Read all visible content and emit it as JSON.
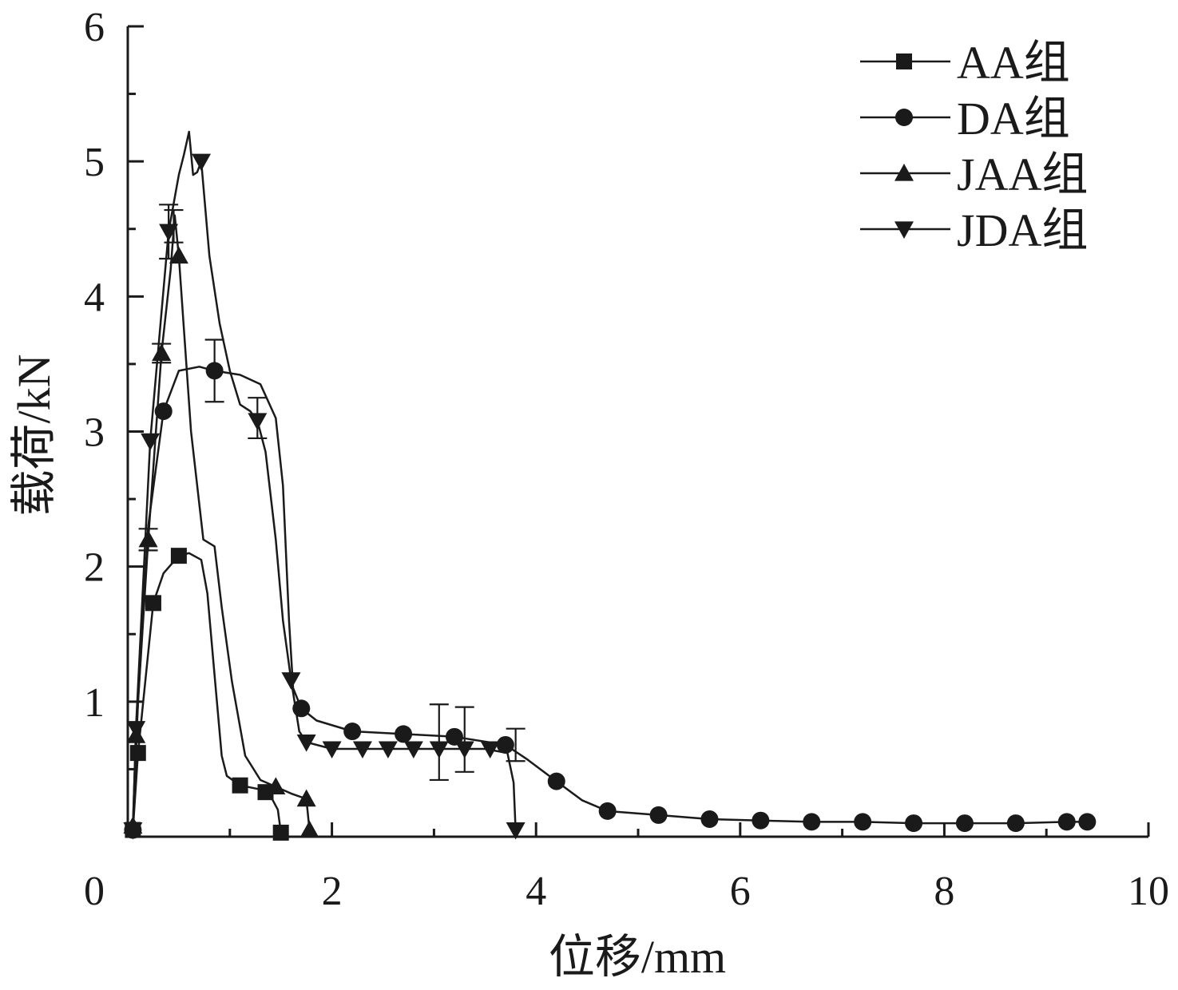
{
  "chart_data": {
    "type": "line",
    "title": "",
    "xlabel": "位移/mm",
    "ylabel": "载荷/kN",
    "xlim": [
      0,
      10
    ],
    "ylim": [
      0,
      6
    ],
    "xticks": [
      0,
      2,
      4,
      6,
      8,
      10
    ],
    "yticks": [
      1,
      2,
      3,
      4,
      5,
      6
    ],
    "xtick_labels": [
      "0",
      "2",
      "4",
      "6",
      "8",
      "10"
    ],
    "ytick_labels": [
      "1",
      "2",
      "3",
      "4",
      "5",
      "6"
    ],
    "legend_position": "top-right",
    "colors": {
      "ink": "#1a1a1a",
      "background": "#ffffff"
    },
    "series": [
      {
        "name": "AA组",
        "marker": "square",
        "x": [
          0.05,
          0.1,
          0.25,
          0.5,
          1.1,
          1.35,
          1.5
        ],
        "y": [
          0.05,
          0.62,
          1.73,
          2.08,
          0.38,
          0.33,
          0.03
        ],
        "curve": [
          [
            0.05,
            0.05
          ],
          [
            0.1,
            0.62
          ],
          [
            0.25,
            1.73
          ],
          [
            0.35,
            1.95
          ],
          [
            0.5,
            2.08
          ],
          [
            0.6,
            2.1
          ],
          [
            0.72,
            2.05
          ],
          [
            0.78,
            1.8
          ],
          [
            0.85,
            1.2
          ],
          [
            0.92,
            0.6
          ],
          [
            0.97,
            0.45
          ],
          [
            1.1,
            0.38
          ],
          [
            1.3,
            0.35
          ],
          [
            1.4,
            0.3
          ],
          [
            1.47,
            0.2
          ],
          [
            1.5,
            0.03
          ]
        ]
      },
      {
        "name": "DA组",
        "marker": "circle",
        "x": [
          0.05,
          0.35,
          0.85,
          1.7,
          2.2,
          2.7,
          3.2,
          3.7,
          4.2,
          4.7,
          5.2,
          5.7,
          6.2,
          6.7,
          7.2,
          7.7,
          8.2,
          8.7,
          9.2,
          9.4
        ],
        "y": [
          0.05,
          3.15,
          3.45,
          0.95,
          0.78,
          0.76,
          0.74,
          0.68,
          0.41,
          0.19,
          0.16,
          0.13,
          0.12,
          0.11,
          0.11,
          0.1,
          0.1,
          0.1,
          0.11,
          0.11
        ],
        "error_bars": [
          {
            "x": 0.85,
            "y": 3.45,
            "err": 0.23
          },
          {
            "x": 3.05,
            "y": 0.7,
            "err": 0.28
          },
          {
            "x": 3.3,
            "y": 0.72,
            "err": 0.24
          },
          {
            "x": 3.8,
            "y": 0.68,
            "err": 0.12
          }
        ],
        "curve": [
          [
            0.05,
            0.05
          ],
          [
            0.1,
            1.0
          ],
          [
            0.2,
            2.3
          ],
          [
            0.35,
            3.15
          ],
          [
            0.5,
            3.45
          ],
          [
            0.7,
            3.48
          ],
          [
            0.85,
            3.45
          ],
          [
            1.1,
            3.42
          ],
          [
            1.3,
            3.35
          ],
          [
            1.45,
            3.1
          ],
          [
            1.52,
            2.6
          ],
          [
            1.58,
            1.6
          ],
          [
            1.62,
            1.1
          ],
          [
            1.7,
            0.95
          ],
          [
            1.85,
            0.86
          ],
          [
            2.2,
            0.78
          ],
          [
            2.7,
            0.76
          ],
          [
            3.2,
            0.74
          ],
          [
            3.7,
            0.68
          ],
          [
            3.9,
            0.58
          ],
          [
            4.2,
            0.41
          ],
          [
            4.45,
            0.27
          ],
          [
            4.7,
            0.19
          ],
          [
            5.2,
            0.16
          ],
          [
            5.7,
            0.13
          ],
          [
            6.2,
            0.12
          ],
          [
            6.7,
            0.11
          ],
          [
            7.2,
            0.11
          ],
          [
            7.7,
            0.1
          ],
          [
            8.2,
            0.1
          ],
          [
            8.7,
            0.1
          ],
          [
            9.2,
            0.11
          ],
          [
            9.4,
            0.11
          ]
        ]
      },
      {
        "name": "JAA组",
        "marker": "triangle-up",
        "x": [
          0.05,
          0.08,
          0.2,
          0.33,
          0.5,
          1.45,
          1.75,
          1.78
        ],
        "y": [
          0.08,
          0.75,
          2.2,
          3.58,
          4.3,
          0.37,
          0.28,
          0.05
        ],
        "error_bars": [
          {
            "x": 0.2,
            "y": 2.2,
            "err": 0.08
          },
          {
            "x": 0.33,
            "y": 3.58,
            "err": 0.07
          },
          {
            "x": 0.45,
            "y": 4.52,
            "err": 0.12
          }
        ],
        "curve": [
          [
            0.05,
            0.08
          ],
          [
            0.08,
            0.75
          ],
          [
            0.2,
            2.2
          ],
          [
            0.33,
            3.58
          ],
          [
            0.42,
            4.2
          ],
          [
            0.46,
            4.6
          ],
          [
            0.5,
            4.3
          ],
          [
            0.62,
            3.0
          ],
          [
            0.74,
            2.2
          ],
          [
            0.85,
            2.15
          ],
          [
            0.92,
            1.7
          ],
          [
            1.02,
            1.15
          ],
          [
            1.15,
            0.6
          ],
          [
            1.3,
            0.42
          ],
          [
            1.45,
            0.37
          ],
          [
            1.6,
            0.32
          ],
          [
            1.75,
            0.28
          ],
          [
            1.78,
            0.05
          ]
        ]
      },
      {
        "name": "JDA组",
        "marker": "triangle-down",
        "x": [
          0.05,
          0.08,
          0.22,
          0.4,
          0.72,
          1.27,
          1.6,
          1.75,
          2.0,
          2.3,
          2.55,
          2.8,
          3.05,
          3.3,
          3.55,
          3.8
        ],
        "y": [
          0.05,
          0.8,
          2.93,
          4.48,
          5.0,
          3.08,
          1.16,
          0.7,
          0.65,
          0.65,
          0.65,
          0.65,
          0.65,
          0.65,
          0.65,
          0.05
        ],
        "error_bars": [
          {
            "x": 0.4,
            "y": 4.48,
            "err": 0.2
          },
          {
            "x": 1.27,
            "y": 3.1,
            "err": 0.15
          }
        ],
        "curve": [
          [
            0.05,
            0.05
          ],
          [
            0.08,
            0.8
          ],
          [
            0.22,
            2.93
          ],
          [
            0.4,
            4.48
          ],
          [
            0.5,
            4.9
          ],
          [
            0.55,
            5.05
          ],
          [
            0.6,
            5.22
          ],
          [
            0.64,
            4.9
          ],
          [
            0.68,
            4.92
          ],
          [
            0.72,
            5.0
          ],
          [
            0.8,
            4.3
          ],
          [
            0.9,
            3.8
          ],
          [
            1.0,
            3.45
          ],
          [
            1.1,
            3.2
          ],
          [
            1.2,
            3.15
          ],
          [
            1.27,
            3.08
          ],
          [
            1.35,
            2.85
          ],
          [
            1.45,
            2.2
          ],
          [
            1.52,
            1.6
          ],
          [
            1.6,
            1.16
          ],
          [
            1.68,
            0.78
          ],
          [
            1.75,
            0.7
          ],
          [
            2.0,
            0.65
          ],
          [
            2.5,
            0.65
          ],
          [
            3.0,
            0.65
          ],
          [
            3.5,
            0.65
          ],
          [
            3.72,
            0.62
          ],
          [
            3.78,
            0.4
          ],
          [
            3.8,
            0.05
          ]
        ]
      }
    ]
  }
}
